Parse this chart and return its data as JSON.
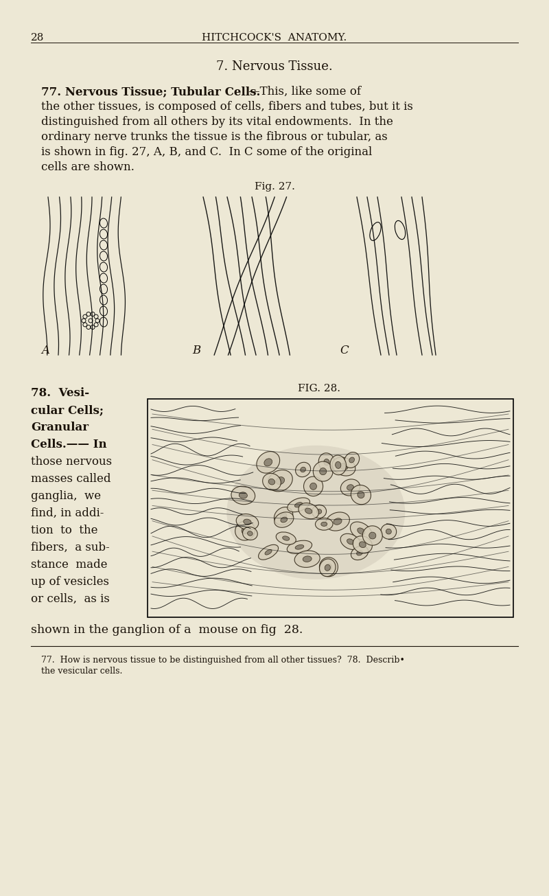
{
  "bg_color": "#ede8d5",
  "text_color": "#1a1209",
  "page_number": "28",
  "header": "HITCHCOCK'S  ANATOMY.",
  "section_title": "7. Nervous Tissue.",
  "para1_bold": "77. Nervous Tissue; Tubular Cells.",
  "para1_dash": "—This, like some of",
  "para1_lines": [
    "the other tissues, is composed of cells, fibers and tubes, but it is",
    "distinguished from all others by its vital endowments.  In the",
    "ordinary nerve trunks the tissue is the fibrous or tubular, as",
    "is shown in fig. 27, A, B, and C.  In C some of the original",
    "cells are shown."
  ],
  "fig27_label": "Fig. 27.",
  "label_A": "A",
  "label_B": "B",
  "label_C": "C",
  "text78_lines": [
    [
      "78.  Vesi-",
      true
    ],
    [
      "cular Cells;",
      true
    ],
    [
      "Granular",
      true
    ],
    [
      "Cells.—— In",
      true
    ],
    [
      "those nervous",
      false
    ],
    [
      "masses called",
      false
    ],
    [
      "ganglia,  we",
      false
    ],
    [
      "find, in addi-",
      false
    ],
    [
      "tion  to  the",
      false
    ],
    [
      "fibers,  a sub-",
      false
    ],
    [
      "stance  made",
      false
    ],
    [
      "up of vesicles",
      false
    ],
    [
      "or cells,  as is",
      false
    ]
  ],
  "fig28_label": "FIG. 28.",
  "para2_end": "shown in the ganglion of a  mouse on fig  28.",
  "footnote1": "77.  How is nervous tissue to be distinguished from all other tissues?  78.  Describ•",
  "footnote2": "the vesicular cells."
}
